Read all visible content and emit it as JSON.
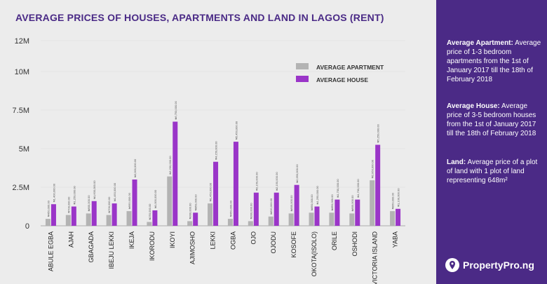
{
  "title": "AVERAGE PRICES OF HOUSES, APARTMENTS AND LAND IN LAGOS (RENT)",
  "sidebar": {
    "notes": [
      {
        "term": "Average Apartment:",
        "text": "Average price of 1-3 bedroom apartments from the 1st of January 2017 till the 18th of February 2018"
      },
      {
        "term": "Average House:",
        "text": "Average price of 3-5 bedroom houses from the 1st of January 2017 till the 18th of February 2018"
      },
      {
        "term": "Land:",
        "text": "Average price of a plot of land with 1 plot of land representing 648m²"
      }
    ],
    "logo_text": "PropertyPro.ng"
  },
  "colors": {
    "apartment": "#b3b3b3",
    "house": "#9a35c8",
    "brand": "#4b2a86",
    "background": "#ececec"
  },
  "chart_data": {
    "type": "bar",
    "ylim": [
      0,
      12000000
    ],
    "yticks": [
      {
        "value": 0,
        "label": "0"
      },
      {
        "value": 2500000,
        "label": "2.5M"
      },
      {
        "value": 5000000,
        "label": "5M"
      },
      {
        "value": 7500000,
        "label": "7.5M"
      },
      {
        "value": 10000000,
        "label": "10M"
      },
      {
        "value": 12000000,
        "label": "12M"
      }
    ],
    "categories": [
      "ABULE EGBA",
      "AJAH",
      "GBAGADA",
      "IBEJU LEKKI",
      "IKEJA",
      "IKORODU",
      "IKOYI",
      "AJIMOSHO",
      "LEKKI",
      "OGBA",
      "OJO",
      "OJODU",
      "KOSOFE",
      "OKOTA(ISOLO)",
      "ORILE",
      "OSHODI",
      "VICTORIA ISLAND",
      "YABA"
    ],
    "series": [
      {
        "name": "AVERAGE APARTMENT",
        "values": [
          450000,
          700000,
          800000,
          700000,
          950000,
          250000,
          3200000,
          300000,
          1450000,
          450000,
          300000,
          600000,
          800000,
          850000,
          850000,
          800000,
          2950000,
          950000
        ]
      },
      {
        "name": "AVERAGE HOUSE",
        "values": [
          1400000,
          1250000,
          1600000,
          1450000,
          3000000,
          1000000,
          6750000,
          850000,
          4150000,
          5450000,
          2150000,
          2150000,
          2650000,
          1250000,
          1700000,
          1700000,
          5250000,
          1100000
        ]
      }
    ],
    "legend_position": "top-right"
  }
}
